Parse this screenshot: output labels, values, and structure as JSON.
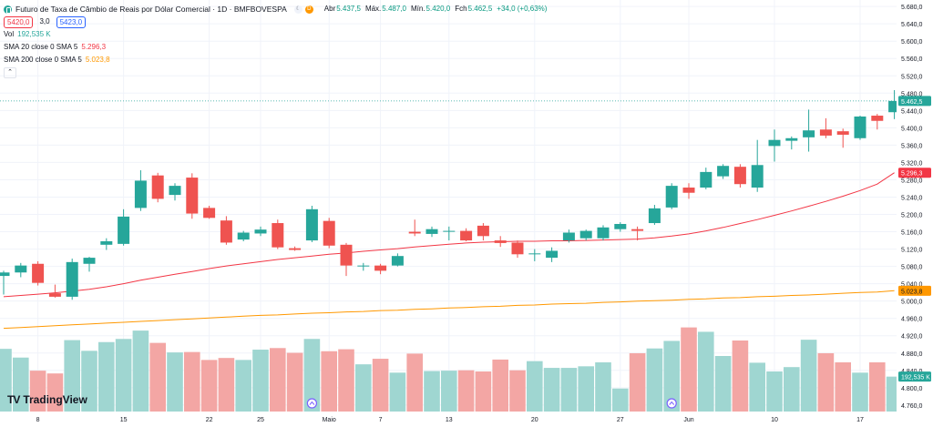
{
  "header": {
    "title": "Futuro de Taxa de Câmbio de Reais por Dólar Comercial · 1D · BMFBOVESPA",
    "market_closed_icon": "moon-icon",
    "delayed_badge": "D",
    "ohlc": {
      "open_label": "Abr",
      "open": "5.437,5",
      "high_label": "Máx.",
      "high": "5.487,0",
      "low_label": "Mín.",
      "low": "5.420,0",
      "close_label": "Fch",
      "close": "5.462,5",
      "change": "+34,0 (+0,63%)"
    },
    "sell_price": "5420,0",
    "spread": "3,0",
    "buy_price": "5423,0"
  },
  "indicators": {
    "volume": {
      "label": "Vol",
      "value": "192,535 K"
    },
    "sma20": {
      "label": "SMA 20 close 0 SMA 5",
      "value": "5.296,3",
      "color": "#f23645"
    },
    "sma200": {
      "label": "SMA 200 close 0 SMA 5",
      "value": "5.023,8",
      "color": "#ff9800"
    },
    "collapse_icon": "chevron-up-icon"
  },
  "colors": {
    "up": "#26a69a",
    "down": "#ef5350",
    "vol_up": "#9fd6d1",
    "vol_down": "#f3a6a4"
  },
  "price_badges": {
    "last": "5.462,5",
    "sma20": "5.296,3",
    "sma200": "5.023,8",
    "volume": "192,535 K"
  },
  "logo": {
    "text": "TradingView",
    "mark": "TV"
  },
  "chart_data": {
    "type": "candlestick",
    "yaxis": {
      "ticks": [
        4760,
        4800,
        4840,
        4880,
        4920,
        4960,
        5000,
        5040,
        5080,
        5120,
        5160,
        5200,
        5240,
        5280,
        5320,
        5360,
        5400,
        5440,
        5480,
        5520,
        5560,
        5600,
        5640,
        5680
      ],
      "tick_labels": [
        "4.760,0",
        "4.800,0",
        "4.840,0",
        "4.880,0",
        "4.920,0",
        "4.960,0",
        "5.000,0",
        "5.040,0",
        "5.080,0",
        "5.120,0",
        "5.160,0",
        "5.200,0",
        "5.240,0",
        "5.280,0",
        "5.320,0",
        "5.360,0",
        "5.400,0",
        "5.440,0",
        "5.480,0",
        "5.520,0",
        "5.560,0",
        "5.600,0",
        "5.640,0",
        "5.680,0"
      ],
      "range": [
        4745,
        5695
      ]
    },
    "xaxis": {
      "labels": [
        {
          "i": 2,
          "text": "8"
        },
        {
          "i": 7,
          "text": "15"
        },
        {
          "i": 12,
          "text": "22"
        },
        {
          "i": 15,
          "text": "25"
        },
        {
          "i": 19,
          "text": "Maio"
        },
        {
          "i": 22,
          "text": "7"
        },
        {
          "i": 26,
          "text": "13"
        },
        {
          "i": 31,
          "text": "20"
        },
        {
          "i": 36,
          "text": "27"
        },
        {
          "i": 40,
          "text": "Jun"
        },
        {
          "i": 45,
          "text": "10"
        },
        {
          "i": 50,
          "text": "17"
        }
      ],
      "event_marker_indices": [
        18,
        39
      ]
    },
    "candles": [
      {
        "o": 5058,
        "h": 5070,
        "l": 5015,
        "c": 5066
      },
      {
        "o": 5066,
        "h": 5088,
        "l": 5055,
        "c": 5082
      },
      {
        "o": 5086,
        "h": 5092,
        "l": 5036,
        "c": 5042
      },
      {
        "o": 5018,
        "h": 5038,
        "l": 5008,
        "c": 5010
      },
      {
        "o": 5010,
        "h": 5098,
        "l": 5003,
        "c": 5090
      },
      {
        "o": 5086,
        "h": 5102,
        "l": 5068,
        "c": 5100
      },
      {
        "o": 5130,
        "h": 5145,
        "l": 5118,
        "c": 5138
      },
      {
        "o": 5132,
        "h": 5212,
        "l": 5128,
        "c": 5195
      },
      {
        "o": 5215,
        "h": 5302,
        "l": 5208,
        "c": 5278
      },
      {
        "o": 5290,
        "h": 5296,
        "l": 5228,
        "c": 5236
      },
      {
        "o": 5245,
        "h": 5272,
        "l": 5232,
        "c": 5266
      },
      {
        "o": 5285,
        "h": 5295,
        "l": 5190,
        "c": 5202
      },
      {
        "o": 5215,
        "h": 5220,
        "l": 5190,
        "c": 5192
      },
      {
        "o": 5186,
        "h": 5196,
        "l": 5130,
        "c": 5135
      },
      {
        "o": 5142,
        "h": 5162,
        "l": 5138,
        "c": 5158
      },
      {
        "o": 5156,
        "h": 5172,
        "l": 5150,
        "c": 5165
      },
      {
        "o": 5180,
        "h": 5188,
        "l": 5120,
        "c": 5124
      },
      {
        "o": 5122,
        "h": 5126,
        "l": 5116,
        "c": 5118
      },
      {
        "o": 5140,
        "h": 5220,
        "l": 5136,
        "c": 5212
      },
      {
        "o": 5185,
        "h": 5192,
        "l": 5122,
        "c": 5128
      },
      {
        "o": 5130,
        "h": 5134,
        "l": 5058,
        "c": 5082
      },
      {
        "o": 5080,
        "h": 5088,
        "l": 5070,
        "c": 5082
      },
      {
        "o": 5082,
        "h": 5086,
        "l": 5062,
        "c": 5070
      },
      {
        "o": 5082,
        "h": 5110,
        "l": 5080,
        "c": 5104
      },
      {
        "o": 5160,
        "h": 5188,
        "l": 5150,
        "c": 5156
      },
      {
        "o": 5155,
        "h": 5172,
        "l": 5148,
        "c": 5166
      },
      {
        "o": 5162,
        "h": 5172,
        "l": 5140,
        "c": 5162
      },
      {
        "o": 5162,
        "h": 5168,
        "l": 5138,
        "c": 5140
      },
      {
        "o": 5174,
        "h": 5180,
        "l": 5140,
        "c": 5150
      },
      {
        "o": 5140,
        "h": 5150,
        "l": 5125,
        "c": 5134
      },
      {
        "o": 5135,
        "h": 5140,
        "l": 5100,
        "c": 5108
      },
      {
        "o": 5108,
        "h": 5120,
        "l": 5092,
        "c": 5110
      },
      {
        "o": 5100,
        "h": 5124,
        "l": 5090,
        "c": 5116
      },
      {
        "o": 5140,
        "h": 5165,
        "l": 5135,
        "c": 5158
      },
      {
        "o": 5145,
        "h": 5165,
        "l": 5140,
        "c": 5162
      },
      {
        "o": 5145,
        "h": 5175,
        "l": 5140,
        "c": 5170
      },
      {
        "o": 5166,
        "h": 5182,
        "l": 5160,
        "c": 5178
      },
      {
        "o": 5166,
        "h": 5172,
        "l": 5140,
        "c": 5162
      },
      {
        "o": 5180,
        "h": 5222,
        "l": 5176,
        "c": 5214
      },
      {
        "o": 5216,
        "h": 5272,
        "l": 5212,
        "c": 5266
      },
      {
        "o": 5262,
        "h": 5272,
        "l": 5236,
        "c": 5250
      },
      {
        "o": 5262,
        "h": 5308,
        "l": 5258,
        "c": 5298
      },
      {
        "o": 5288,
        "h": 5316,
        "l": 5282,
        "c": 5312
      },
      {
        "o": 5310,
        "h": 5316,
        "l": 5262,
        "c": 5270
      },
      {
        "o": 5262,
        "h": 5372,
        "l": 5252,
        "c": 5314
      },
      {
        "o": 5358,
        "h": 5396,
        "l": 5322,
        "c": 5372
      },
      {
        "o": 5370,
        "h": 5380,
        "l": 5350,
        "c": 5376
      },
      {
        "o": 5378,
        "h": 5442,
        "l": 5345,
        "c": 5394
      },
      {
        "o": 5396,
        "h": 5422,
        "l": 5376,
        "c": 5382
      },
      {
        "o": 5392,
        "h": 5398,
        "l": 5354,
        "c": 5384
      },
      {
        "o": 5376,
        "h": 5428,
        "l": 5372,
        "c": 5426
      },
      {
        "o": 5428,
        "h": 5432,
        "l": 5396,
        "c": 5416
      },
      {
        "o": 5436,
        "h": 5487,
        "l": 5420,
        "c": 5462
      }
    ],
    "volume": {
      "range": [
        0,
        2800
      ],
      "values": [
        1580,
        1360,
        1030,
        960,
        1800,
        1530,
        1750,
        1830,
        2040,
        1730,
        1490,
        1500,
        1300,
        1350,
        1300,
        1560,
        1600,
        1480,
        1830,
        1520,
        1570,
        1190,
        1330,
        980,
        1460,
        1020,
        1030,
        1040,
        1010,
        1310,
        1040,
        1270,
        1100,
        1100,
        1140,
        1240,
        580,
        1470,
        1590,
        1780,
        2120,
        2010,
        1400,
        1790,
        1230,
        1010,
        1120,
        1810,
        1470,
        1240,
        980,
        1240,
        880
      ]
    },
    "sma20": [
      5010,
      5013,
      5016,
      5019,
      5023,
      5027,
      5033,
      5040,
      5048,
      5055,
      5062,
      5068,
      5075,
      5081,
      5086,
      5091,
      5096,
      5100,
      5104,
      5108,
      5111,
      5115,
      5118,
      5121,
      5125,
      5128,
      5131,
      5134,
      5136,
      5137,
      5138,
      5138,
      5139,
      5139,
      5140,
      5141,
      5142,
      5143,
      5146,
      5150,
      5155,
      5162,
      5170,
      5179,
      5188,
      5198,
      5208,
      5219,
      5230,
      5242,
      5255,
      5270,
      5296.3
    ],
    "sma200": [
      4937,
      4939,
      4941,
      4943,
      4945,
      4947,
      4949,
      4951,
      4953,
      4955,
      4957,
      4959,
      4961,
      4963,
      4965,
      4967,
      4968,
      4970,
      4972,
      4973,
      4975,
      4976,
      4978,
      4979,
      4981,
      4982,
      4984,
      4985,
      4987,
      4988,
      4990,
      4991,
      4993,
      4994,
      4995,
      4997,
      4998,
      5000,
      5001,
      5002,
      5004,
      5005,
      5007,
      5008,
      5010,
      5011,
      5013,
      5014,
      5016,
      5018,
      5020,
      5021,
      5023.8
    ]
  }
}
